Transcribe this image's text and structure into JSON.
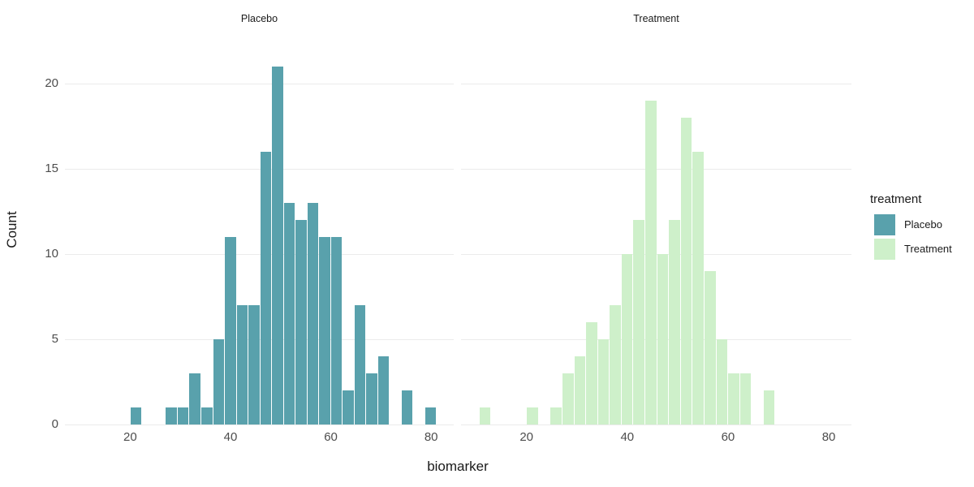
{
  "chart_data": {
    "type": "bar",
    "subtype": "faceted-histogram",
    "binwidth": 2.35,
    "facets": [
      {
        "label": "Placebo",
        "color": "#59A1AC",
        "bins": [
          {
            "x": 20.0,
            "n": 1
          },
          {
            "x": 27.05,
            "n": 1
          },
          {
            "x": 29.4,
            "n": 1
          },
          {
            "x": 31.75,
            "n": 3
          },
          {
            "x": 34.1,
            "n": 1
          },
          {
            "x": 36.45,
            "n": 5
          },
          {
            "x": 38.8,
            "n": 11
          },
          {
            "x": 41.15,
            "n": 7
          },
          {
            "x": 43.5,
            "n": 7
          },
          {
            "x": 45.85,
            "n": 16
          },
          {
            "x": 48.2,
            "n": 21
          },
          {
            "x": 50.55,
            "n": 13
          },
          {
            "x": 52.9,
            "n": 12
          },
          {
            "x": 55.25,
            "n": 13
          },
          {
            "x": 57.6,
            "n": 11
          },
          {
            "x": 59.95,
            "n": 11
          },
          {
            "x": 62.3,
            "n": 2
          },
          {
            "x": 64.65,
            "n": 7
          },
          {
            "x": 67.0,
            "n": 3
          },
          {
            "x": 69.35,
            "n": 4
          },
          {
            "x": 74.05,
            "n": 2
          },
          {
            "x": 78.75,
            "n": 1
          }
        ]
      },
      {
        "label": "Treatment",
        "color": "#CEF0CA",
        "bins": [
          {
            "x": 10.6,
            "n": 1
          },
          {
            "x": 20.0,
            "n": 1
          },
          {
            "x": 24.7,
            "n": 1
          },
          {
            "x": 27.05,
            "n": 3
          },
          {
            "x": 29.4,
            "n": 4
          },
          {
            "x": 31.75,
            "n": 6
          },
          {
            "x": 34.1,
            "n": 5
          },
          {
            "x": 36.45,
            "n": 7
          },
          {
            "x": 38.8,
            "n": 10
          },
          {
            "x": 41.15,
            "n": 12
          },
          {
            "x": 43.5,
            "n": 19
          },
          {
            "x": 45.85,
            "n": 10
          },
          {
            "x": 48.2,
            "n": 12
          },
          {
            "x": 50.55,
            "n": 18
          },
          {
            "x": 52.9,
            "n": 16
          },
          {
            "x": 55.25,
            "n": 9
          },
          {
            "x": 57.6,
            "n": 5
          },
          {
            "x": 59.95,
            "n": 3
          },
          {
            "x": 62.3,
            "n": 3
          },
          {
            "x": 67.0,
            "n": 2
          }
        ]
      }
    ],
    "x": {
      "label": "biomarker",
      "ticks": [
        20,
        40,
        60,
        80
      ],
      "domain": [
        7.0,
        84.5
      ]
    },
    "y": {
      "label": "Count",
      "ticks": [
        0,
        5,
        10,
        15,
        20
      ],
      "domain": [
        0,
        22.05
      ]
    },
    "legend": {
      "title": "treatment",
      "entries": [
        {
          "label": "Placebo",
          "color": "#59A1AC"
        },
        {
          "label": "Treatment",
          "color": "#CEF0CA"
        }
      ]
    },
    "grid_on": true,
    "grid_color": "#ebebeb",
    "tick_label_color": "#4d4d4d",
    "title_color": "#1a1a1a",
    "background": "#ffffff"
  }
}
